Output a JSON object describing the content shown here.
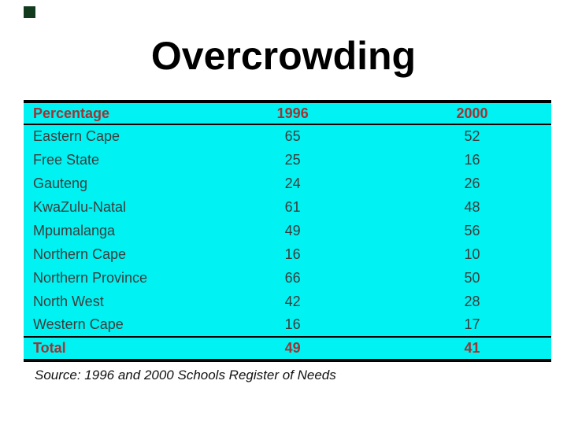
{
  "slide": {
    "title": "Overcrowding",
    "source_note": "Source: 1996 and 2000 Schools Register of Needs"
  },
  "table": {
    "columns": [
      "Percentage",
      "1996",
      "2000"
    ],
    "rows": [
      {
        "province": "Eastern Cape",
        "y1996": "65",
        "y2000": "52"
      },
      {
        "province": "Free State",
        "y1996": "25",
        "y2000": "16"
      },
      {
        "province": "Gauteng",
        "y1996": "24",
        "y2000": "26"
      },
      {
        "province": "KwaZulu-Natal",
        "y1996": "61",
        "y2000": "48"
      },
      {
        "province": "Mpumalanga",
        "y1996": "49",
        "y2000": "56"
      },
      {
        "province": "Northern Cape",
        "y1996": "16",
        "y2000": "10"
      },
      {
        "province": "Northern Province",
        "y1996": "66",
        "y2000": "50"
      },
      {
        "province": "North West",
        "y1996": "42",
        "y2000": "28"
      },
      {
        "province": "Western Cape",
        "y1996": "16",
        "y2000": "17"
      }
    ],
    "total_row": {
      "label": "Total",
      "y1996": "49",
      "y2000": "41"
    }
  },
  "colors": {
    "table_bg": "#00F2F2",
    "header_text": "#A03333",
    "row_text": "#3C3C3C",
    "border": "#000000",
    "title_text": "#000000",
    "source_text": "#111111",
    "corner_mark": "#123B1E"
  }
}
